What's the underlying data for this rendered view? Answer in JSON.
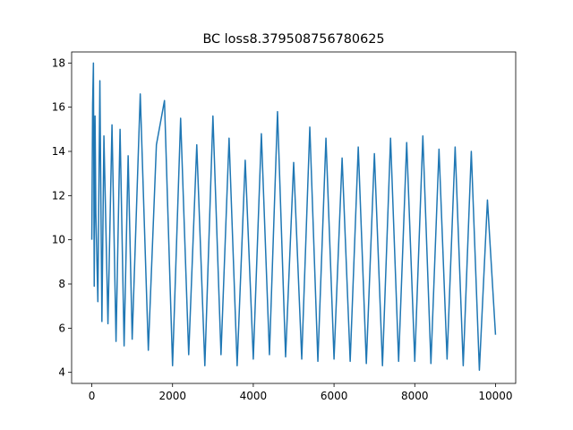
{
  "chart_data": {
    "type": "line",
    "title": "BC loss8.379508756780625",
    "xlabel": "",
    "ylabel": "",
    "xlim": [
      -500,
      10500
    ],
    "ylim": [
      3.5,
      18.5
    ],
    "xticks": [
      0,
      2000,
      4000,
      6000,
      8000,
      10000
    ],
    "yticks": [
      4,
      6,
      8,
      10,
      12,
      14,
      16,
      18
    ],
    "grid": false,
    "legend": false,
    "line_color": "#1f77b4",
    "series": [
      {
        "x": [
          0,
          20,
          40,
          60,
          80,
          100,
          150,
          200,
          250,
          300,
          400,
          500,
          600,
          700,
          800,
          900,
          1000,
          1200,
          1400,
          1600,
          1800,
          2000,
          2200,
          2400,
          2600,
          2800,
          3000,
          3200,
          3400,
          3600,
          3800,
          4000,
          4200,
          4400,
          4600,
          4800,
          5000,
          5200,
          5400,
          5600,
          5800,
          6000,
          6200,
          6400,
          6600,
          6800,
          7000,
          7200,
          7400,
          7600,
          7800,
          8000,
          8200,
          8400,
          8600,
          8800,
          9000,
          9200,
          9400,
          9600,
          9800,
          10000
        ],
        "y": [
          10.0,
          16.1,
          18.0,
          7.9,
          15.6,
          11.2,
          7.2,
          17.2,
          6.3,
          14.7,
          6.2,
          15.2,
          5.4,
          15.0,
          5.2,
          13.8,
          5.5,
          16.6,
          5.0,
          14.3,
          16.3,
          4.3,
          15.5,
          4.8,
          14.3,
          4.3,
          15.6,
          4.8,
          14.6,
          4.3,
          13.6,
          4.6,
          14.8,
          4.8,
          15.8,
          4.7,
          13.5,
          4.6,
          15.1,
          4.5,
          14.6,
          4.6,
          13.7,
          4.5,
          14.2,
          4.4,
          13.9,
          4.3,
          14.6,
          4.5,
          14.4,
          4.5,
          14.7,
          4.4,
          14.1,
          4.6,
          14.2,
          4.3,
          14.0,
          4.1,
          11.8,
          5.7
        ]
      }
    ]
  }
}
